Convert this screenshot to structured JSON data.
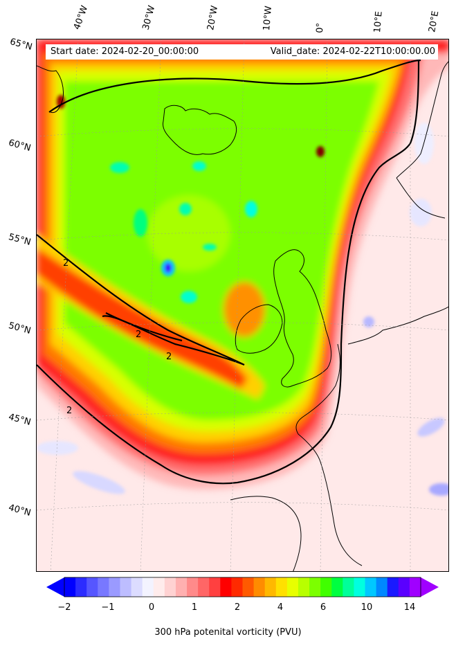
{
  "header": {
    "start_date": "Start date: 2024-02-20_00:00:00",
    "valid_date": "Valid_date: 2024-02-22T10:00:00.00"
  },
  "longitude_labels": [
    "40°W",
    "30°W",
    "20°W",
    "10°W",
    "0°",
    "10°E",
    "20°E"
  ],
  "latitude_labels": [
    "65°N",
    "60°N",
    "55°N",
    "50°N",
    "45°N",
    "40°N"
  ],
  "contour_label": "2",
  "colorbar": {
    "label": "300 hPa potenital vorticity (PVU)",
    "ticks": [
      "−2",
      "−1",
      "0",
      "1",
      "2",
      "4",
      "6",
      "10",
      "14"
    ],
    "colors": [
      "#0000ff",
      "#2c2cff",
      "#5656ff",
      "#7878ff",
      "#9a9aff",
      "#bdbdff",
      "#dcdcff",
      "#f3f3ff",
      "#ffecec",
      "#ffd2d2",
      "#ffb0b0",
      "#ff8a8a",
      "#ff6666",
      "#ff4040",
      "#ff0000",
      "#ff2a00",
      "#ff5a00",
      "#ff8c00",
      "#ffb800",
      "#ffe000",
      "#e8ff00",
      "#b8ff00",
      "#7cff00",
      "#40ff00",
      "#00ff40",
      "#00ff9a",
      "#00ffe0",
      "#00c8ff",
      "#0088ff",
      "#1a1aff",
      "#5a00ff",
      "#a000ff"
    ]
  },
  "colors": {
    "coastline": "#000000",
    "contour": "#000000"
  }
}
